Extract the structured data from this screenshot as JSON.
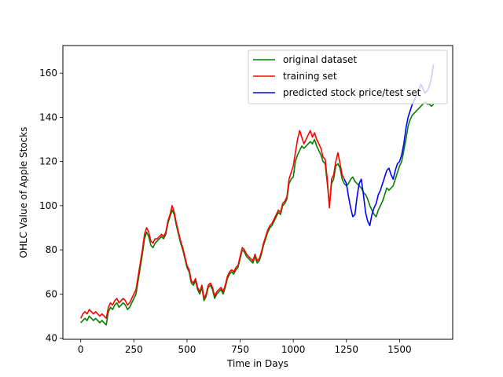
{
  "chart_data": {
    "type": "line",
    "title": "",
    "xlabel": "Time in Days",
    "ylabel": "OHLC Value of Apple Stocks",
    "xlim": [
      -84,
      1750
    ],
    "ylim": [
      39.5,
      172.5
    ],
    "x_ticks": [
      0,
      250,
      500,
      750,
      1000,
      1250,
      1500
    ],
    "y_ticks": [
      40,
      60,
      80,
      100,
      120,
      140,
      160
    ],
    "grid": false,
    "legend_position": "top-right",
    "series": [
      {
        "name": "original dataset",
        "color": "#008000",
        "x": [
          0,
          10,
          20,
          30,
          40,
          50,
          60,
          70,
          80,
          90,
          100,
          110,
          120,
          130,
          140,
          150,
          160,
          170,
          180,
          190,
          200,
          210,
          220,
          230,
          240,
          250,
          260,
          270,
          280,
          290,
          300,
          310,
          320,
          330,
          340,
          350,
          360,
          370,
          380,
          390,
          400,
          410,
          420,
          430,
          440,
          450,
          460,
          470,
          480,
          490,
          500,
          510,
          520,
          530,
          540,
          550,
          560,
          570,
          580,
          590,
          600,
          610,
          620,
          630,
          640,
          650,
          660,
          670,
          680,
          690,
          700,
          710,
          720,
          730,
          740,
          750,
          760,
          770,
          780,
          790,
          800,
          810,
          820,
          830,
          840,
          850,
          860,
          870,
          880,
          890,
          900,
          910,
          920,
          930,
          940,
          950,
          960,
          970,
          980,
          990,
          1000,
          1010,
          1020,
          1030,
          1040,
          1050,
          1060,
          1070,
          1080,
          1090,
          1100,
          1110,
          1120,
          1130,
          1140,
          1150,
          1160,
          1170,
          1180,
          1190,
          1200,
          1210,
          1220,
          1230,
          1240,
          1250,
          1260,
          1270,
          1280,
          1290,
          1300,
          1310,
          1320,
          1330,
          1340,
          1350,
          1360,
          1370,
          1380,
          1390,
          1400,
          1410,
          1420,
          1430,
          1440,
          1450,
          1460,
          1470,
          1480,
          1490,
          1500,
          1510,
          1520,
          1530,
          1540,
          1550,
          1560,
          1570,
          1580,
          1590,
          1600,
          1610,
          1620,
          1630,
          1640,
          1650,
          1660
        ],
        "values": [
          47,
          48,
          49,
          48,
          50,
          49,
          48,
          49,
          48,
          47,
          48,
          47,
          46,
          52,
          54,
          53,
          55,
          56,
          54,
          55,
          56,
          55,
          53,
          54,
          56,
          58,
          60,
          66,
          72,
          78,
          85,
          88,
          86,
          82,
          81,
          83,
          84,
          85,
          86,
          85,
          87,
          92,
          95,
          98,
          96,
          91,
          87,
          83,
          80,
          76,
          72,
          70,
          65,
          64,
          66,
          62,
          60,
          63,
          57,
          59,
          63,
          64,
          62,
          58,
          60,
          61,
          62,
          60,
          63,
          67,
          69,
          70,
          69,
          71,
          72,
          76,
          80,
          79,
          77,
          76,
          75,
          74,
          77,
          74,
          75,
          78,
          82,
          85,
          88,
          90,
          91,
          93,
          95,
          97,
          96,
          100,
          101,
          103,
          110,
          112,
          113,
          120,
          123,
          125,
          127,
          126,
          127,
          128,
          129,
          128,
          130,
          127,
          125,
          123,
          120,
          119,
          110,
          100,
          110,
          112,
          118,
          119,
          117,
          112,
          110,
          109,
          110,
          112,
          113,
          111,
          110,
          109,
          108,
          106,
          105,
          103,
          100,
          98,
          96,
          95,
          98,
          100,
          102,
          105,
          108,
          107,
          108,
          109,
          112,
          115,
          118,
          120,
          125,
          130,
          136,
          139,
          141,
          142,
          143,
          144,
          145,
          146,
          147,
          146,
          146,
          145,
          146
        ]
      },
      {
        "name": "training set",
        "color": "#ff0000",
        "x": [
          0,
          10,
          20,
          30,
          40,
          50,
          60,
          70,
          80,
          90,
          100,
          110,
          120,
          130,
          140,
          150,
          160,
          170,
          180,
          190,
          200,
          210,
          220,
          230,
          240,
          250,
          260,
          270,
          280,
          290,
          300,
          310,
          320,
          330,
          340,
          350,
          360,
          370,
          380,
          390,
          400,
          410,
          420,
          430,
          440,
          450,
          460,
          470,
          480,
          490,
          500,
          510,
          520,
          530,
          540,
          550,
          560,
          570,
          580,
          590,
          600,
          610,
          620,
          630,
          640,
          650,
          660,
          670,
          680,
          690,
          700,
          710,
          720,
          730,
          740,
          750,
          760,
          770,
          780,
          790,
          800,
          810,
          820,
          830,
          840,
          850,
          860,
          870,
          880,
          890,
          900,
          910,
          920,
          930,
          940,
          950,
          960,
          970,
          980,
          990,
          1000,
          1010,
          1020,
          1030,
          1040,
          1050,
          1060,
          1070,
          1080,
          1090,
          1100,
          1110,
          1120,
          1130,
          1140,
          1150,
          1160,
          1170,
          1180,
          1190,
          1200,
          1210,
          1220,
          1230,
          1240
        ],
        "values": [
          49,
          51,
          52,
          51,
          53,
          52,
          51,
          52,
          51,
          50,
          51,
          50,
          49,
          54,
          56,
          55,
          57,
          58,
          56,
          57,
          58,
          57,
          55,
          56,
          58,
          60,
          62,
          68,
          74,
          80,
          87,
          90,
          88,
          84,
          83,
          85,
          85,
          86,
          87,
          86,
          88,
          93,
          96,
          100,
          97,
          92,
          88,
          84,
          81,
          77,
          73,
          71,
          66,
          65,
          67,
          63,
          61,
          64,
          58,
          60,
          64,
          65,
          63,
          59,
          61,
          62,
          63,
          61,
          64,
          68,
          70,
          71,
          70,
          72,
          73,
          77,
          81,
          80,
          78,
          77,
          76,
          75,
          78,
          75,
          76,
          79,
          83,
          86,
          89,
          91,
          92,
          94,
          96,
          98,
          97,
          101,
          102,
          104,
          112,
          115,
          118,
          124,
          130,
          134,
          131,
          128,
          130,
          132,
          134,
          131,
          133,
          130,
          128,
          126,
          122,
          121,
          112,
          99,
          112,
          114,
          120,
          124,
          119,
          114,
          112
        ]
      },
      {
        "name": "predicted stock price/test set",
        "color": "#0000ff",
        "x": [
          1240,
          1250,
          1260,
          1270,
          1280,
          1290,
          1300,
          1310,
          1320,
          1330,
          1340,
          1350,
          1360,
          1370,
          1380,
          1390,
          1400,
          1410,
          1420,
          1430,
          1440,
          1450,
          1460,
          1470,
          1480,
          1490,
          1500,
          1510,
          1520,
          1530,
          1540,
          1550,
          1560,
          1570,
          1580,
          1590,
          1600,
          1610,
          1620,
          1630,
          1640,
          1650,
          1660
        ],
        "values": [
          112,
          110,
          104,
          99,
          95,
          96,
          104,
          110,
          112,
          105,
          97,
          93,
          91,
          96,
          99,
          101,
          105,
          107,
          110,
          113,
          116,
          117,
          114,
          112,
          116,
          119,
          120,
          123,
          128,
          135,
          140,
          143,
          146,
          148,
          150,
          152,
          155,
          153,
          151,
          152,
          154,
          158,
          164
        ]
      }
    ]
  }
}
